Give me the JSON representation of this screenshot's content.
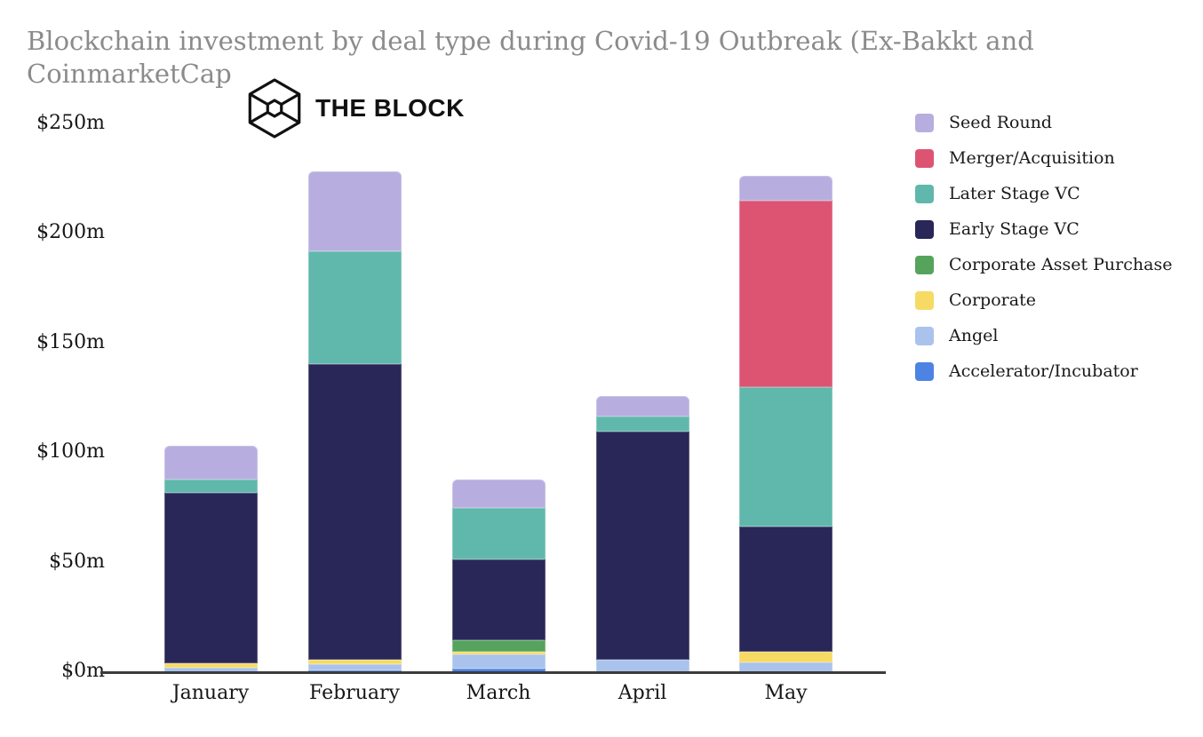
{
  "title": "Blockchain investment by deal type during Covid-19 Outbreak (Ex-Bakkt and CoinmarketCap",
  "logo": {
    "text": "THE BLOCK"
  },
  "y_axis": {
    "tick_labels": [
      "$0m",
      "$50m",
      "$100m",
      "$150m",
      "$200m",
      "$250m"
    ]
  },
  "legend": {
    "position": "right",
    "items_top_to_bottom": [
      "Seed Round",
      "Merger/Acquisition",
      "Later Stage VC",
      "Early Stage VC",
      "Corporate Asset Purchase",
      "Corporate",
      "Angel",
      "Accelerator/Incubator"
    ]
  },
  "chart_data": {
    "type": "bar",
    "stacked": true,
    "stack_order": "bottom_to_top",
    "title": "Blockchain investment by deal type during Covid-19 Outbreak (Ex-Bakkt and CoinmarketCap",
    "xlabel": "",
    "ylabel": "",
    "units": "$m",
    "ylim": [
      0,
      250
    ],
    "y_tick_labels": [
      "$0m",
      "$50m",
      "$100m",
      "$150m",
      "$200m",
      "$250m"
    ],
    "grid": false,
    "legend_position": "right",
    "categories": [
      "January",
      "February",
      "March",
      "April",
      "May"
    ],
    "series": [
      {
        "name": "Accelerator/Incubator",
        "color": "#4d83e3",
        "values": [
          0,
          1,
          1.5,
          0,
          0
        ]
      },
      {
        "name": "Angel",
        "color": "#a9c3ec",
        "values": [
          2,
          2.5,
          6.5,
          5.5,
          4.5
        ]
      },
      {
        "name": "Corporate",
        "color": "#f6da64",
        "values": [
          2,
          2,
          1.5,
          0,
          5
        ]
      },
      {
        "name": "Corporate Asset Purchase",
        "color": "#55a35c",
        "values": [
          0,
          0,
          5,
          0,
          0
        ]
      },
      {
        "name": "Early Stage VC",
        "color": "#292658",
        "values": [
          78,
          135,
          37,
          104.5,
          57
        ]
      },
      {
        "name": "Later Stage VC",
        "color": "#5fb8ab",
        "values": [
          6,
          51.5,
          23.5,
          6.5,
          63.5
        ]
      },
      {
        "name": "Merger/Acquisition",
        "color": "#dc5472",
        "values": [
          0,
          0,
          0,
          0,
          85
        ]
      },
      {
        "name": "Seed Round",
        "color": "#b7aedf",
        "values": [
          15.5,
          36.5,
          13,
          9.5,
          11.5
        ]
      }
    ],
    "totals": [
      103.5,
      228.5,
      88,
      126,
      226.5
    ]
  }
}
